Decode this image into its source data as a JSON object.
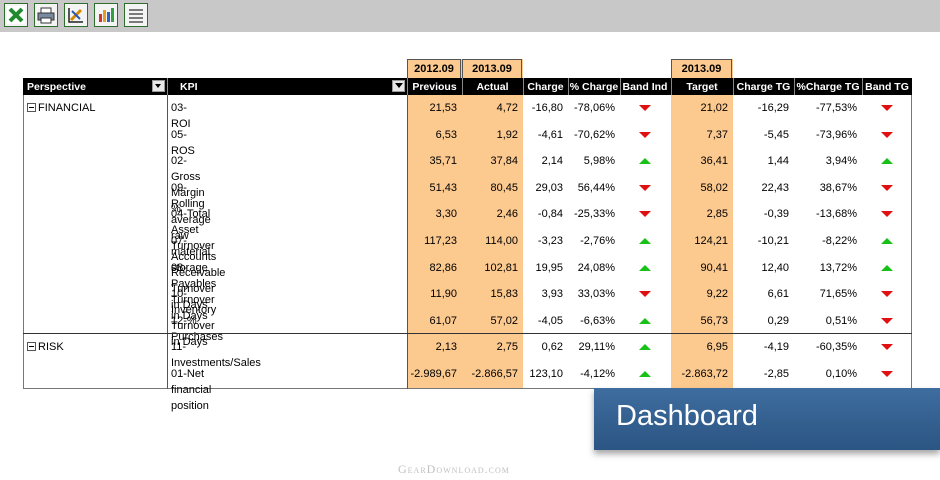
{
  "toolbar": {
    "buttons": [
      {
        "icon": "excel-icon"
      },
      {
        "icon": "print-icon"
      },
      {
        "icon": "edit-chart-icon"
      },
      {
        "icon": "bar-chart-icon"
      },
      {
        "icon": "list-icon"
      }
    ]
  },
  "table": {
    "period_headers": {
      "previous": "2012.09",
      "actual": "2013.09",
      "target": "2013.09"
    },
    "columns": {
      "perspective": "Perspective",
      "kpi": "KPI",
      "previous": "Previous",
      "actual": "Actual",
      "charge": "Charge",
      "pct_charge": "% Charge",
      "band_ind": "Band Ind",
      "target": "Target",
      "charge_tg": "Charge TG",
      "pct_charge_tg": "%Charge TG",
      "band_tg": "Band TG"
    },
    "groups": [
      {
        "perspective": "FINANCIAL",
        "rows": [
          {
            "kpi": "03-ROI",
            "previous": "21,53",
            "actual": "4,72",
            "charge": "-16,80",
            "pct_charge": "-78,06%",
            "band_ind": "down",
            "target": "21,02",
            "charge_tg": "-16,29",
            "pct_charge_tg": "-77,53%",
            "band_tg": "down"
          },
          {
            "kpi": "05-ROS",
            "previous": "6,53",
            "actual": "1,92",
            "charge": "-4,61",
            "pct_charge": "-70,62%",
            "band_ind": "down",
            "target": "7,37",
            "charge_tg": "-5,45",
            "pct_charge_tg": "-73,96%",
            "band_tg": "down"
          },
          {
            "kpi": "02-Gross Margin %",
            "previous": "35,71",
            "actual": "37,84",
            "charge": "2,14",
            "pct_charge": "5,98%",
            "band_ind": "up",
            "target": "36,41",
            "charge_tg": "1,44",
            "pct_charge_tg": "3,94%",
            "band_tg": "up"
          },
          {
            "kpi": "09-Rolling average raw material storage",
            "previous": "51,43",
            "actual": "80,45",
            "charge": "29,03",
            "pct_charge": "56,44%",
            "band_ind": "down",
            "target": "58,02",
            "charge_tg": "22,43",
            "pct_charge_tg": "38,67%",
            "band_tg": "down"
          },
          {
            "kpi": "04-Total Asset Turnover",
            "previous": "3,30",
            "actual": "2,46",
            "charge": "-0,84",
            "pct_charge": "-25,33%",
            "band_ind": "down",
            "target": "2,85",
            "charge_tg": "-0,39",
            "pct_charge_tg": "-13,68%",
            "band_tg": "down"
          },
          {
            "kpi": "07-Accounts Receivable Turnover in Days",
            "previous": "117,23",
            "actual": "114,00",
            "charge": "-3,23",
            "pct_charge": "-2,76%",
            "band_ind": "up",
            "target": "124,21",
            "charge_tg": "-10,21",
            "pct_charge_tg": "-8,22%",
            "band_tg": "up"
          },
          {
            "kpi": "08-Payables Turnover in Days",
            "previous": "82,86",
            "actual": "102,81",
            "charge": "19,95",
            "pct_charge": "24,08%",
            "band_ind": "up",
            "target": "90,41",
            "charge_tg": "12,40",
            "pct_charge_tg": "13,72%",
            "band_tg": "up"
          },
          {
            "kpi": "10-Inventory Turnover in Days",
            "previous": "11,90",
            "actual": "15,83",
            "charge": "3,93",
            "pct_charge": "33,03%",
            "band_ind": "down",
            "target": "9,22",
            "charge_tg": "6,61",
            "pct_charge_tg": "71,65%",
            "band_tg": "down"
          },
          {
            "kpi": "12-% Purchases",
            "previous": "61,07",
            "actual": "57,02",
            "charge": "-4,05",
            "pct_charge": "-6,63%",
            "band_ind": "up",
            "target": "56,73",
            "charge_tg": "0,29",
            "pct_charge_tg": "0,51%",
            "band_tg": "down"
          }
        ]
      },
      {
        "perspective": "RISK",
        "rows": [
          {
            "kpi": "11-Investments/Sales",
            "previous": "2,13",
            "actual": "2,75",
            "charge": "0,62",
            "pct_charge": "29,11%",
            "band_ind": "up",
            "target": "6,95",
            "charge_tg": "-4,19",
            "pct_charge_tg": "-60,35%",
            "band_tg": "down"
          },
          {
            "kpi": "01-Net financial position",
            "previous": "-2.989,67",
            "actual": "-2.866,57",
            "charge": "123,10",
            "pct_charge": "-4,12%",
            "band_ind": "up",
            "target": "-2.863,72",
            "charge_tg": "-2,85",
            "pct_charge_tg": "0,10%",
            "band_tg": "down"
          }
        ]
      }
    ]
  },
  "banner": {
    "label": "Dashboard"
  },
  "watermark": {
    "text": "GearDownload.com"
  },
  "colors": {
    "highlight": "#fcc98f",
    "header": "#000000",
    "up": "#18c018",
    "down": "#e01010",
    "banner": "#2f5b8a"
  }
}
